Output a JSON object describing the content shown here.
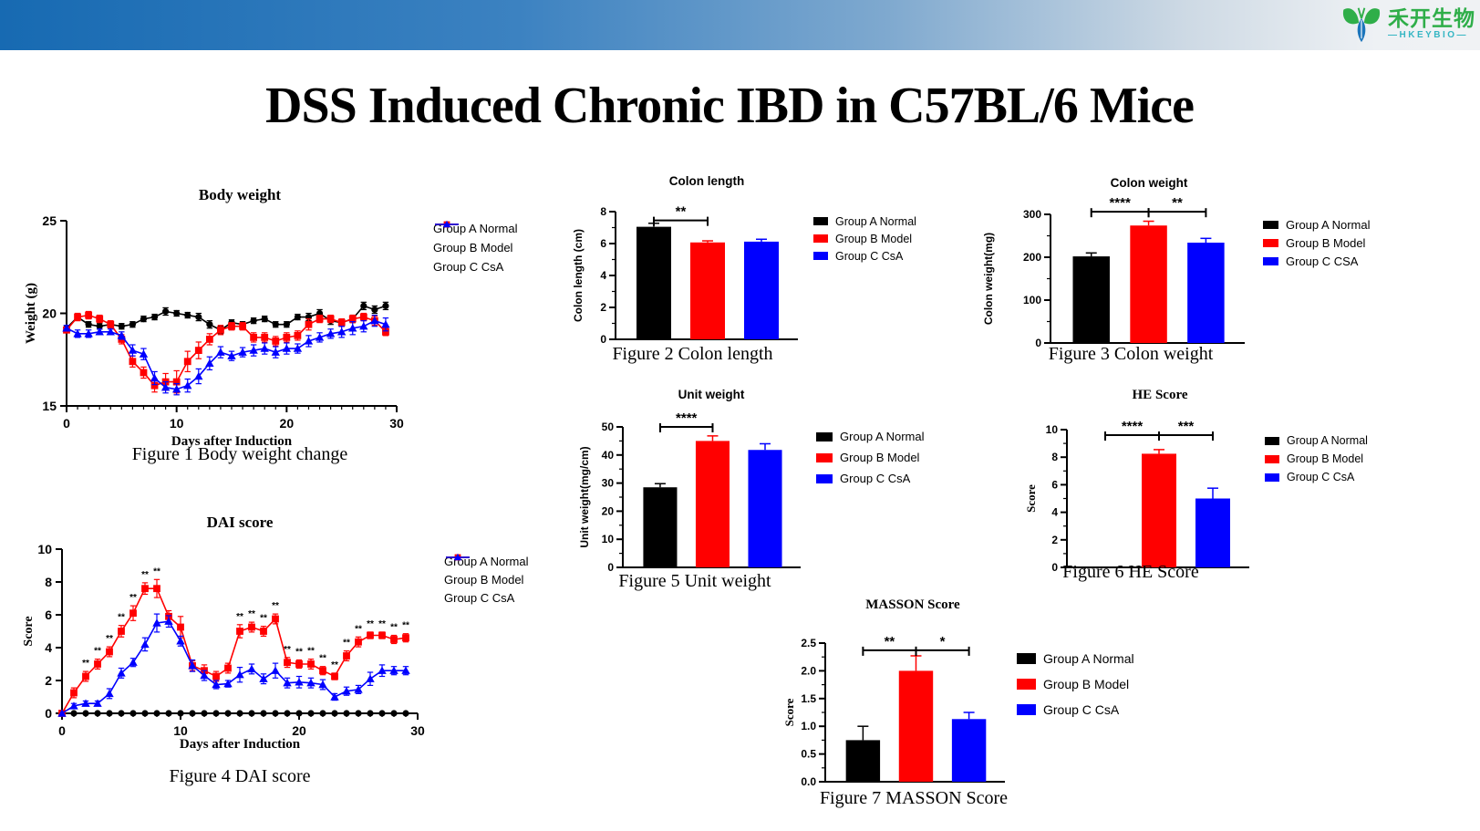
{
  "page": {
    "title": "DSS Induced Chronic IBD in C57BL/6 Mice"
  },
  "logo": {
    "brand_cn": "禾开生物",
    "brand_en": "—HKEYBIO—"
  },
  "colors": {
    "groupA": "#000000",
    "groupB": "#FF0000",
    "groupC": "#0000FF",
    "banner_left": "#176AB2",
    "banner_right": "#F0F2F4",
    "logo_green": "#2FAE49",
    "logo_teal": "#35B6C3"
  },
  "chart_data": [
    {
      "id": "body_weight",
      "type": "line",
      "title": "Body weight",
      "caption": "Figure 1 Body  weight change",
      "xlabel": "Days after Induction",
      "ylabel": "Weight (g)",
      "xlim": [
        0,
        30
      ],
      "ylim": [
        15,
        25
      ],
      "xticks": [
        0,
        10,
        20,
        30
      ],
      "yticks": [
        15,
        20,
        25
      ],
      "legend_position": "right",
      "grid": false,
      "series": [
        {
          "name": "Group A Normal",
          "color": "#000000",
          "marker": "circle",
          "values": [
            19.2,
            19.8,
            19.4,
            19.3,
            19.4,
            19.3,
            19.4,
            19.7,
            19.8,
            20.1,
            20.0,
            19.9,
            19.8,
            19.4,
            19.1,
            19.5,
            19.4,
            19.6,
            19.7,
            19.4,
            19.4,
            19.8,
            19.8,
            20.0,
            19.6,
            19.5,
            19.7,
            20.4,
            20.2,
            20.4
          ],
          "errors": [
            0.15,
            0.15,
            0.15,
            0.15,
            0.15,
            0.15,
            0.15,
            0.15,
            0.15,
            0.2,
            0.15,
            0.15,
            0.2,
            0.2,
            0.2,
            0.15,
            0.15,
            0.15,
            0.15,
            0.15,
            0.15,
            0.15,
            0.2,
            0.2,
            0.2,
            0.2,
            0.2,
            0.2,
            0.2,
            0.2
          ]
        },
        {
          "name": "Group B Model",
          "color": "#FF0000",
          "marker": "square",
          "values": [
            19.1,
            19.8,
            19.9,
            19.7,
            19.4,
            18.6,
            17.4,
            16.8,
            16.1,
            16.3,
            16.3,
            17.4,
            18.0,
            18.6,
            19.1,
            19.3,
            19.3,
            18.7,
            18.7,
            18.5,
            18.7,
            18.8,
            19.4,
            19.7,
            19.7,
            19.5,
            19.7,
            19.8,
            19.6,
            19.0
          ],
          "errors": [
            0.15,
            0.2,
            0.2,
            0.2,
            0.2,
            0.25,
            0.3,
            0.3,
            0.35,
            0.45,
            0.6,
            0.55,
            0.45,
            0.3,
            0.25,
            0.2,
            0.2,
            0.25,
            0.25,
            0.25,
            0.25,
            0.25,
            0.3,
            0.2,
            0.2,
            0.2,
            0.2,
            0.2,
            0.25,
            0.2
          ]
        },
        {
          "name": "Group C CsA",
          "color": "#0000FF",
          "marker": "triangle",
          "values": [
            19.2,
            18.9,
            18.9,
            19.0,
            19.0,
            18.8,
            18.0,
            17.8,
            16.5,
            16.0,
            15.9,
            16.1,
            16.6,
            17.3,
            17.9,
            17.7,
            17.9,
            18.0,
            18.1,
            17.9,
            18.1,
            18.1,
            18.5,
            18.7,
            18.9,
            19.0,
            19.2,
            19.3,
            19.6,
            19.4
          ],
          "errors": [
            0.15,
            0.2,
            0.2,
            0.15,
            0.15,
            0.2,
            0.3,
            0.3,
            0.35,
            0.3,
            0.3,
            0.35,
            0.4,
            0.35,
            0.3,
            0.25,
            0.25,
            0.3,
            0.3,
            0.3,
            0.3,
            0.25,
            0.3,
            0.25,
            0.25,
            0.3,
            0.35,
            0.3,
            0.3,
            0.35
          ]
        }
      ]
    },
    {
      "id": "colon_length",
      "type": "bar",
      "title": "Colon length",
      "caption": "Figure 2 Colon length",
      "ylabel": "Colon length (cm)",
      "ylim": [
        0,
        8
      ],
      "yticks": [
        0,
        2,
        4,
        6,
        8
      ],
      "legend_position": "right",
      "grid": false,
      "groups": [
        {
          "name": "Group A Normal",
          "color": "#000000",
          "value": 7.05,
          "error": 0.22
        },
        {
          "name": "Group B Model",
          "color": "#FF0000",
          "value": 6.07,
          "error": 0.1
        },
        {
          "name": "Group C CsA",
          "color": "#0000FF",
          "value": 6.12,
          "error": 0.15
        }
      ],
      "significance": [
        {
          "a": 0,
          "b": 1,
          "stars": "**",
          "y": 7.45
        }
      ]
    },
    {
      "id": "colon_weight",
      "type": "bar",
      "title": "Colon  weight",
      "caption": "Figure 3 Colon weight",
      "ylabel": "Colon  weight(mg)",
      "ylim": [
        0,
        300
      ],
      "yticks": [
        0,
        100,
        200,
        300
      ],
      "legend_position": "right",
      "grid": false,
      "groups": [
        {
          "name": "Group A Normal",
          "color": "#000000",
          "value": 202,
          "error": 8
        },
        {
          "name": "Group B Model",
          "color": "#FF0000",
          "value": 274,
          "error": 10
        },
        {
          "name": "Group C CSA",
          "color": "#0000FF",
          "value": 234,
          "error": 10
        }
      ],
      "significance": [
        {
          "a": 0,
          "b": 1,
          "stars": "****",
          "y": 306
        },
        {
          "a": 1,
          "b": 2,
          "stars": "**",
          "y": 306
        }
      ]
    },
    {
      "id": "dai_score",
      "type": "line",
      "title": "DAI score",
      "caption": "Figure 4 DAI score",
      "xlabel": "Days after Induction",
      "ylabel": "Score",
      "xlim": [
        0,
        30
      ],
      "ylim": [
        0,
        10
      ],
      "xticks": [
        0,
        10,
        20,
        30
      ],
      "yticks": [
        0,
        2,
        4,
        6,
        8,
        10
      ],
      "legend_position": "right",
      "grid": false,
      "star_label": "**",
      "stars_days": [
        2,
        3,
        4,
        5,
        6,
        7,
        8,
        15,
        16,
        17,
        18,
        19,
        20,
        21,
        22,
        23,
        24,
        25,
        26,
        27,
        28,
        29
      ],
      "series": [
        {
          "name": "Group A Normal",
          "color": "#000000",
          "marker": "circle",
          "values": [
            0,
            0,
            0,
            0,
            0,
            0,
            0,
            0,
            0,
            0,
            0,
            0,
            0,
            0,
            0,
            0,
            0,
            0,
            0,
            0,
            0,
            0,
            0,
            0,
            0,
            0,
            0,
            0,
            0,
            0
          ],
          "errors": [
            0,
            0,
            0,
            0,
            0,
            0,
            0,
            0,
            0,
            0,
            0,
            0,
            0,
            0,
            0,
            0,
            0,
            0,
            0,
            0,
            0,
            0,
            0,
            0,
            0,
            0,
            0,
            0,
            0,
            0
          ]
        },
        {
          "name": "Group B Model",
          "color": "#FF0000",
          "marker": "square",
          "values": [
            0,
            1.25,
            2.25,
            3.0,
            3.75,
            5.0,
            6.1,
            7.6,
            7.6,
            5.9,
            5.25,
            2.9,
            2.6,
            2.25,
            2.75,
            5.0,
            5.25,
            5.0,
            5.75,
            3.1,
            3.0,
            3.0,
            2.6,
            2.25,
            3.5,
            4.35,
            4.75,
            4.75,
            4.5,
            4.6
          ],
          "errors": [
            0,
            0.3,
            0.3,
            0.3,
            0.3,
            0.35,
            0.45,
            0.35,
            0.55,
            0.35,
            0.65,
            0.3,
            0.35,
            0.3,
            0.3,
            0.4,
            0.3,
            0.3,
            0.3,
            0.3,
            0.25,
            0.3,
            0.25,
            0.2,
            0.3,
            0.3,
            0.2,
            0.2,
            0.25,
            0.25
          ]
        },
        {
          "name": "Group C CsA",
          "color": "#0000FF",
          "marker": "triangle",
          "values": [
            0,
            0.45,
            0.6,
            0.6,
            1.2,
            2.45,
            3.1,
            4.2,
            5.5,
            5.6,
            4.4,
            2.9,
            2.3,
            1.75,
            1.8,
            2.35,
            2.7,
            2.1,
            2.6,
            1.85,
            1.9,
            1.85,
            1.75,
            1.0,
            1.35,
            1.45,
            2.1,
            2.6,
            2.6,
            2.6
          ],
          "errors": [
            0,
            0.15,
            0.15,
            0.15,
            0.3,
            0.3,
            0.25,
            0.4,
            0.55,
            0.35,
            0.3,
            0.35,
            0.3,
            0.25,
            0.2,
            0.45,
            0.3,
            0.3,
            0.45,
            0.3,
            0.35,
            0.3,
            0.3,
            0.2,
            0.25,
            0.25,
            0.4,
            0.35,
            0.25,
            0.25
          ]
        }
      ]
    },
    {
      "id": "unit_weight",
      "type": "bar",
      "title": "Unit weight",
      "caption": "Figure 5 Unit weight",
      "ylabel": "Unit weight(mg/cm)",
      "ylim": [
        0,
        50
      ],
      "yticks": [
        0,
        10,
        20,
        30,
        40,
        50
      ],
      "legend_position": "right",
      "grid": false,
      "groups": [
        {
          "name": "Group A Normal",
          "color": "#000000",
          "value": 28.5,
          "error": 1.3
        },
        {
          "name": "Group B Model",
          "color": "#FF0000",
          "value": 45,
          "error": 1.8
        },
        {
          "name": "Group C CsA",
          "color": "#0000FF",
          "value": 41.8,
          "error": 2.2
        }
      ],
      "significance": [
        {
          "a": 0,
          "b": 1,
          "stars": "****",
          "y": 50
        }
      ]
    },
    {
      "id": "he_score",
      "type": "bar",
      "title": "HE Score",
      "caption": "Figure 6 HE Score",
      "ylabel": "Score",
      "ylim": [
        0,
        10
      ],
      "yticks": [
        0,
        2,
        4,
        6,
        8,
        10
      ],
      "legend_position": "right",
      "grid": false,
      "groups": [
        {
          "name": "Group A Normal",
          "color": "#000000",
          "value": 0,
          "error": 0
        },
        {
          "name": "Group B Model",
          "color": "#FF0000",
          "value": 8.25,
          "error": 0.3
        },
        {
          "name": "Group C CsA",
          "color": "#0000FF",
          "value": 5.0,
          "error": 0.75
        }
      ],
      "significance": [
        {
          "a": 0,
          "b": 1,
          "stars": "****",
          "y": 9.6
        },
        {
          "a": 1,
          "b": 2,
          "stars": "***",
          "y": 9.6
        }
      ]
    },
    {
      "id": "masson_score",
      "type": "bar",
      "title": "MASSON Score",
      "caption": "Figure 7 MASSON Score",
      "ylabel": "Score",
      "ylim": [
        0,
        2.5
      ],
      "yticks": [
        "0.0",
        "0.5",
        "1.0",
        "1.5",
        "2.0",
        "2.5"
      ],
      "legend_position": "right",
      "grid": false,
      "groups": [
        {
          "name": "Group A Normal",
          "color": "#000000",
          "value": 0.75,
          "error": 0.25
        },
        {
          "name": "Group B Model",
          "color": "#FF0000",
          "value": 2.0,
          "error": 0.27
        },
        {
          "name": "Group C CsA",
          "color": "#0000FF",
          "value": 1.13,
          "error": 0.12
        }
      ],
      "significance": [
        {
          "a": 0,
          "b": 1,
          "stars": "**",
          "y": 2.37
        },
        {
          "a": 1,
          "b": 2,
          "stars": "*",
          "y": 2.37
        }
      ]
    }
  ]
}
